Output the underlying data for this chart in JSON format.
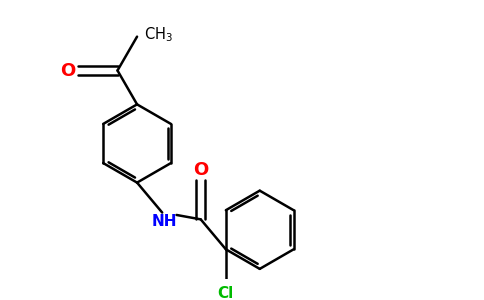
{
  "bg_color": "#ffffff",
  "bond_color": "#000000",
  "O_color": "#ff0000",
  "N_color": "#0000ff",
  "Cl_color": "#00bb00",
  "line_width": 1.8,
  "figsize": [
    4.84,
    3.0
  ],
  "dpi": 100,
  "xlim": [
    0,
    9.5
  ],
  "ylim": [
    0,
    5.8
  ]
}
